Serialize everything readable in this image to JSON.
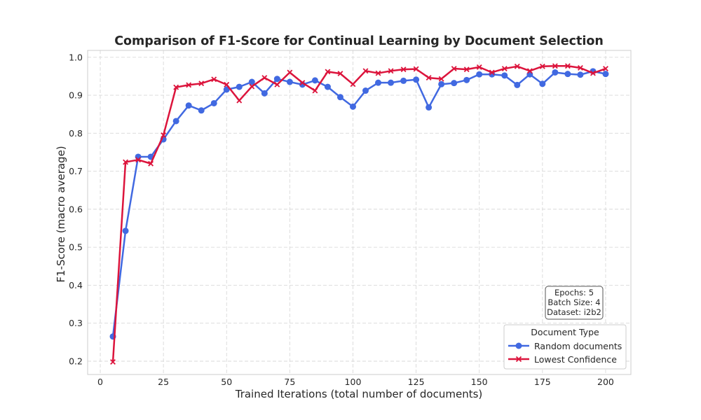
{
  "chart_data": {
    "type": "line",
    "title": "Comparison of F1-Score for Continual Learning by Document Selection",
    "xlabel": "Trained Iterations (total number of documents)",
    "ylabel": "F1-Score (macro average)",
    "xlim": [
      -5,
      210
    ],
    "ylim": [
      0.165,
      1.018
    ],
    "xticks": [
      0,
      25,
      50,
      75,
      100,
      125,
      150,
      175,
      200
    ],
    "yticks": [
      0.2,
      0.3,
      0.4,
      0.5,
      0.6,
      0.7,
      0.8,
      0.9,
      1.0
    ],
    "grid": true,
    "legend": {
      "title": "Document Type",
      "placement": "lower-right"
    },
    "x": [
      5,
      10,
      15,
      20,
      25,
      30,
      35,
      40,
      45,
      50,
      55,
      60,
      65,
      70,
      75,
      80,
      85,
      90,
      95,
      100,
      105,
      110,
      115,
      120,
      125,
      130,
      135,
      140,
      145,
      150,
      155,
      160,
      165,
      170,
      175,
      180,
      185,
      190,
      195,
      200
    ],
    "series": [
      {
        "name": "Random documents",
        "color": "#4169e1",
        "marker": "circle",
        "values": [
          0.265,
          0.543,
          0.738,
          0.738,
          0.784,
          0.832,
          0.873,
          0.86,
          0.879,
          0.915,
          0.922,
          0.935,
          0.905,
          0.943,
          0.935,
          0.928,
          0.939,
          0.922,
          0.895,
          0.87,
          0.912,
          0.933,
          0.933,
          0.938,
          0.941,
          0.868,
          0.929,
          0.932,
          0.94,
          0.955,
          0.955,
          0.952,
          0.927,
          0.955,
          0.93,
          0.96,
          0.956,
          0.954,
          0.963,
          0.956
        ]
      },
      {
        "name": "Lowest Confidence",
        "color": "#dc143c",
        "marker": "x",
        "values": [
          0.198,
          0.724,
          0.73,
          0.72,
          0.795,
          0.921,
          0.927,
          0.931,
          0.942,
          0.928,
          0.886,
          0.923,
          0.946,
          0.928,
          0.96,
          0.933,
          0.912,
          0.962,
          0.957,
          0.929,
          0.964,
          0.958,
          0.964,
          0.968,
          0.969,
          0.946,
          0.943,
          0.97,
          0.968,
          0.974,
          0.96,
          0.97,
          0.976,
          0.964,
          0.976,
          0.977,
          0.977,
          0.972,
          0.958,
          0.97
        ]
      }
    ],
    "annotation": [
      "Epochs: 5",
      "Batch Size: 4",
      "Dataset: i2b2"
    ]
  }
}
